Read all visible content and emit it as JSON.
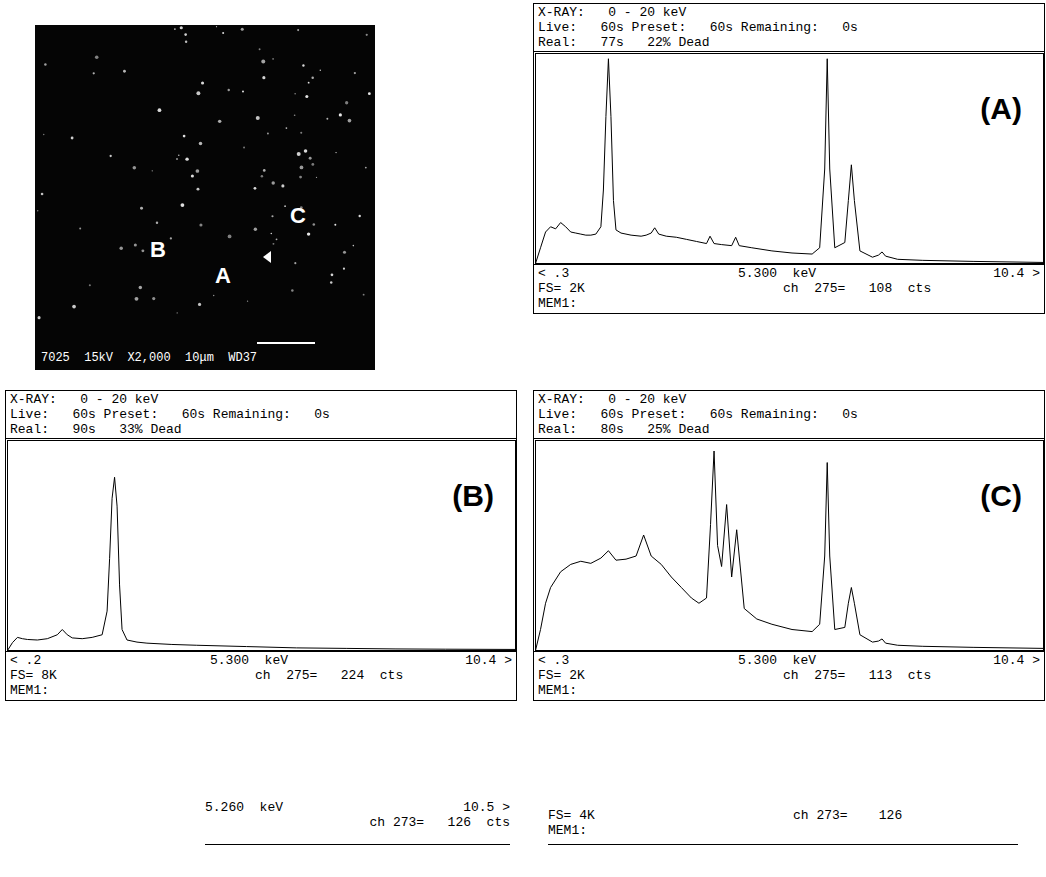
{
  "sem_image": {
    "labels": [
      "B",
      "A",
      "C"
    ],
    "caption": "7025  15kV  X2,000  10μm  WD37"
  },
  "chart_data": [
    {
      "type": "line",
      "title": "(A)",
      "color": "#000000",
      "tick_labels": false,
      "header_lines": [
        "X-RAY:   0 - 20 keV",
        "Live:   60s Preset:   60s Remaining:   0s",
        "Real:   77s   22% Dead"
      ],
      "footer": {
        "range_start": "< .3",
        "cursor": "5.300  keV",
        "range_end": "10.4 >",
        "full_scale": "FS= 2K",
        "channel": "ch  275=   108  cts",
        "memory": "MEM1:"
      },
      "xlim": [
        0.3,
        10.4
      ],
      "ylim": [
        0,
        2000
      ],
      "x": [
        0.3,
        0.4,
        0.5,
        0.6,
        0.7,
        0.8,
        0.9,
        1.0,
        1.1,
        1.2,
        1.3,
        1.4,
        1.5,
        1.6,
        1.65,
        1.7,
        1.75,
        1.8,
        1.85,
        1.9,
        2.0,
        2.2,
        2.4,
        2.5,
        2.6,
        2.67,
        2.75,
        2.9,
        3.1,
        3.3,
        3.5,
        3.7,
        3.77,
        3.85,
        4.0,
        4.2,
        4.28,
        4.35,
        4.6,
        5.0,
        5.4,
        5.8,
        5.95,
        6.05,
        6.1,
        6.15,
        6.25,
        6.45,
        6.52,
        6.58,
        6.64,
        6.75,
        7.0,
        7.12,
        7.19,
        7.26,
        7.5,
        8.0,
        9.0,
        10.4
      ],
      "values": [
        0,
        150,
        300,
        350,
        330,
        390,
        350,
        300,
        290,
        280,
        270,
        270,
        280,
        350,
        700,
        1400,
        1950,
        1400,
        600,
        320,
        290,
        270,
        260,
        270,
        290,
        340,
        280,
        260,
        250,
        230,
        210,
        190,
        260,
        190,
        180,
        170,
        250,
        170,
        150,
        120,
        100,
        90,
        150,
        900,
        1950,
        900,
        150,
        200,
        600,
        940,
        600,
        120,
        60,
        80,
        110,
        70,
        40,
        30,
        20,
        10
      ]
    },
    {
      "type": "line",
      "title": "(B)",
      "color": "#000000",
      "tick_labels": false,
      "header_lines": [
        "X-RAY:   0 - 20 keV",
        "Live:   60s Preset:   60s Remaining:   0s",
        "Real:   90s   33% Dead"
      ],
      "footer": {
        "range_start": "< .2",
        "cursor": "5.300  keV",
        "range_end": "10.4 >",
        "full_scale": "FS= 8K",
        "channel": "ch  275=   224  cts",
        "memory": "MEM1:"
      },
      "xlim": [
        0.2,
        10.4
      ],
      "ylim": [
        0,
        8000
      ],
      "x": [
        0.2,
        0.3,
        0.4,
        0.5,
        0.6,
        0.8,
        1.0,
        1.2,
        1.3,
        1.4,
        1.5,
        1.7,
        1.9,
        2.1,
        2.2,
        2.25,
        2.3,
        2.35,
        2.4,
        2.45,
        2.5,
        2.6,
        2.8,
        3.0,
        3.5,
        4.0,
        5.0,
        6.0,
        7.0,
        8.0,
        9.0,
        10.4
      ],
      "values": [
        0,
        300,
        500,
        450,
        420,
        400,
        450,
        600,
        800,
        600,
        480,
        450,
        500,
        600,
        1500,
        3500,
        5800,
        6600,
        5500,
        2500,
        800,
        400,
        320,
        280,
        230,
        200,
        150,
        100,
        80,
        60,
        50,
        40
      ]
    },
    {
      "type": "line",
      "title": "(C)",
      "color": "#000000",
      "tick_labels": false,
      "header_lines": [
        "X-RAY:   0 - 20 keV",
        "Live:   60s Preset:   60s Remaining:   0s",
        "Real:   80s   25% Dead"
      ],
      "footer": {
        "range_start": "< .3",
        "cursor": "5.300  keV",
        "range_end": "10.4 >",
        "full_scale": "FS= 2K",
        "channel": "ch  275=   113  cts",
        "memory": "MEM1:"
      },
      "xlim": [
        0.3,
        10.4
      ],
      "ylim": [
        0,
        2000
      ],
      "x": [
        0.3,
        0.4,
        0.5,
        0.6,
        0.8,
        1.0,
        1.2,
        1.4,
        1.6,
        1.75,
        1.9,
        2.1,
        2.3,
        2.45,
        2.6,
        2.8,
        3.0,
        3.2,
        3.4,
        3.55,
        3.7,
        3.78,
        3.85,
        3.92,
        4.0,
        4.1,
        4.2,
        4.3,
        4.45,
        4.7,
        5.0,
        5.4,
        5.8,
        5.95,
        6.05,
        6.1,
        6.15,
        6.25,
        6.45,
        6.52,
        6.58,
        6.64,
        6.75,
        7.0,
        7.12,
        7.19,
        7.26,
        7.5,
        8.0,
        9.0,
        10.4
      ],
      "values": [
        0,
        200,
        450,
        600,
        750,
        820,
        850,
        830,
        880,
        950,
        860,
        870,
        900,
        1100,
        900,
        820,
        700,
        600,
        500,
        450,
        500,
        1200,
        1900,
        1000,
        800,
        1390,
        700,
        1150,
        400,
        300,
        250,
        200,
        180,
        250,
        900,
        1790,
        900,
        200,
        220,
        450,
        600,
        450,
        150,
        80,
        90,
        110,
        70,
        50,
        40,
        30,
        20
      ]
    }
  ],
  "stray_footer": {
    "left": [
      "5.260  keV",
      "10.5 >",
      "ch 273=   126  cts"
    ],
    "right": [
      "FS= 4K",
      "ch 273=    126",
      "MEM1:"
    ]
  }
}
